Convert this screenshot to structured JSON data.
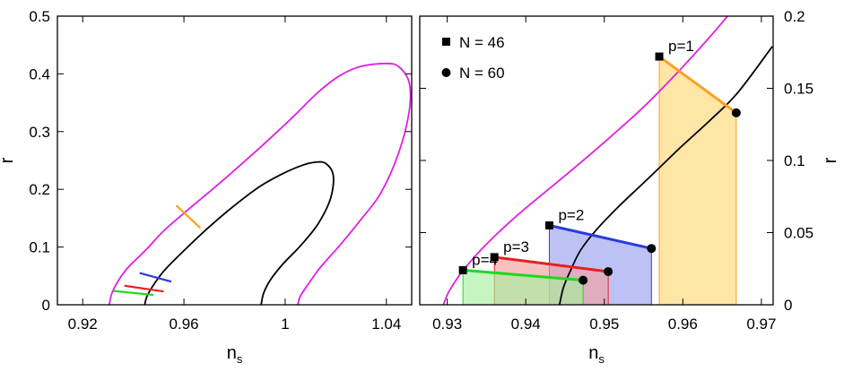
{
  "chart_data": [
    {
      "type": "line",
      "panel": "left",
      "xlabel": "n",
      "xlabel_sub": "s",
      "ylabel": "r",
      "xlim": [
        0.91,
        1.05
      ],
      "ylim": [
        0,
        0.5
      ],
      "xticks": [
        0.92,
        0.96,
        1,
        1.04
      ],
      "xtick_labels": [
        "0.92",
        "0.96",
        "1",
        "1.04"
      ],
      "yticks": [
        0,
        0.1,
        0.2,
        0.3,
        0.4,
        0.5
      ],
      "ytick_labels": [
        "0",
        "0.1",
        "0.2",
        "0.3",
        "0.4",
        "0.5"
      ],
      "contours": [
        {
          "name": "outer contour",
          "color": "#e020e0",
          "points": [
            [
              0.9305,
              0
            ],
            [
              0.932,
              0.025
            ],
            [
              0.937,
              0.06
            ],
            [
              0.945,
              0.095
            ],
            [
              0.952,
              0.128
            ],
            [
              0.962,
              0.166
            ],
            [
              0.975,
              0.214
            ],
            [
              0.99,
              0.272
            ],
            [
              1.003,
              0.325
            ],
            [
              1.013,
              0.368
            ],
            [
              1.022,
              0.398
            ],
            [
              1.03,
              0.413
            ],
            [
              1.04,
              0.418
            ],
            [
              1.045,
              0.412
            ],
            [
              1.049,
              0.385
            ],
            [
              1.049,
              0.335
            ],
            [
              1.045,
              0.265
            ],
            [
              1.038,
              0.195
            ],
            [
              1.03,
              0.148
            ],
            [
              1.022,
              0.105
            ],
            [
              1.014,
              0.065
            ],
            [
              1.009,
              0.035
            ],
            [
              1.006,
              0.015
            ],
            [
              1.005,
              0
            ]
          ]
        },
        {
          "name": "inner contour",
          "color": "#000000",
          "points": [
            [
              0.9445,
              0
            ],
            [
              0.946,
              0.02
            ],
            [
              0.952,
              0.058
            ],
            [
              0.961,
              0.098
            ],
            [
              0.97,
              0.135
            ],
            [
              0.98,
              0.172
            ],
            [
              0.99,
              0.205
            ],
            [
              0.999,
              0.227
            ],
            [
              1.007,
              0.242
            ],
            [
              1.012,
              0.247
            ],
            [
              1.016,
              0.245
            ],
            [
              1.019,
              0.225
            ],
            [
              1.018,
              0.185
            ],
            [
              1.013,
              0.14
            ],
            [
              1.006,
              0.102
            ],
            [
              0.999,
              0.07
            ],
            [
              0.994,
              0.042
            ],
            [
              0.9915,
              0.02
            ],
            [
              0.9905,
              0
            ]
          ]
        }
      ],
      "segments": [
        {
          "name": "p=1",
          "color": "#ffa020",
          "start": [
            0.957,
            0.172
          ],
          "end": [
            0.9665,
            0.133
          ]
        },
        {
          "name": "p=2",
          "color": "#2a3ae0",
          "start": [
            0.9425,
            0.055
          ],
          "end": [
            0.955,
            0.04
          ]
        },
        {
          "name": "p=3",
          "color": "#e82020",
          "start": [
            0.9365,
            0.033
          ],
          "end": [
            0.952,
            0.023
          ]
        },
        {
          "name": "p=4",
          "color": "#20d820",
          "start": [
            0.932,
            0.024
          ],
          "end": [
            0.948,
            0.017
          ]
        }
      ]
    },
    {
      "type": "line",
      "panel": "right",
      "xlabel": "n",
      "xlabel_sub": "s",
      "ylabel": "r",
      "xlim": [
        0.9265,
        0.9715
      ],
      "ylim": [
        0,
        0.2
      ],
      "xticks": [
        0.93,
        0.94,
        0.95,
        0.96,
        0.97
      ],
      "xtick_labels": [
        "0.93",
        "0.94",
        "0.95",
        "0.96",
        "0.97"
      ],
      "yticks": [
        0,
        0.05,
        0.1,
        0.15,
        0.2
      ],
      "ytick_labels": [
        "0",
        "0.05",
        "0.1",
        "0.15",
        "0.2"
      ],
      "legend": [
        {
          "marker": "square",
          "label": "N = 46"
        },
        {
          "marker": "circle",
          "label": "N = 60"
        }
      ],
      "contours": [
        {
          "name": "outer contour",
          "color": "#e020e0",
          "points": [
            [
              0.9295,
              0
            ],
            [
              0.9303,
              0.01
            ],
            [
              0.9322,
              0.025
            ],
            [
              0.935,
              0.042
            ],
            [
              0.9385,
              0.06
            ],
            [
              0.942,
              0.076
            ],
            [
              0.946,
              0.094
            ],
            [
              0.9505,
              0.115
            ],
            [
              0.955,
              0.137
            ],
            [
              0.9595,
              0.162
            ],
            [
              0.9635,
              0.186
            ],
            [
              0.966,
              0.202
            ]
          ]
        },
        {
          "name": "inner contour",
          "color": "#000000",
          "points": [
            [
              0.9443,
              0
            ],
            [
              0.9448,
              0.012
            ],
            [
              0.9458,
              0.025
            ],
            [
              0.947,
              0.038
            ],
            [
              0.949,
              0.052
            ],
            [
              0.952,
              0.069
            ],
            [
              0.9555,
              0.087
            ],
            [
              0.9595,
              0.108
            ],
            [
              0.9635,
              0.128
            ],
            [
              0.967,
              0.147
            ],
            [
              0.9714,
              0.179
            ]
          ]
        }
      ],
      "models": [
        {
          "label": "p=1",
          "color": "#ffa020",
          "fill": "#ffd878",
          "n46": [
            0.957,
            0.172
          ],
          "n60": [
            0.9668,
            0.133
          ]
        },
        {
          "label": "p=2",
          "color": "#2a3ae0",
          "fill": "#9aa2f0",
          "n46": [
            0.943,
            0.055
          ],
          "n60": [
            0.956,
            0.039
          ]
        },
        {
          "label": "p=3",
          "color": "#e82020",
          "fill": "#f4a0a0",
          "n46": [
            0.936,
            0.033
          ],
          "n60": [
            0.9505,
            0.023
          ]
        },
        {
          "label": "p=4",
          "color": "#20d820",
          "fill": "#a8f0a0",
          "n46": [
            0.932,
            0.024
          ],
          "n60": [
            0.9473,
            0.017
          ]
        }
      ]
    }
  ]
}
